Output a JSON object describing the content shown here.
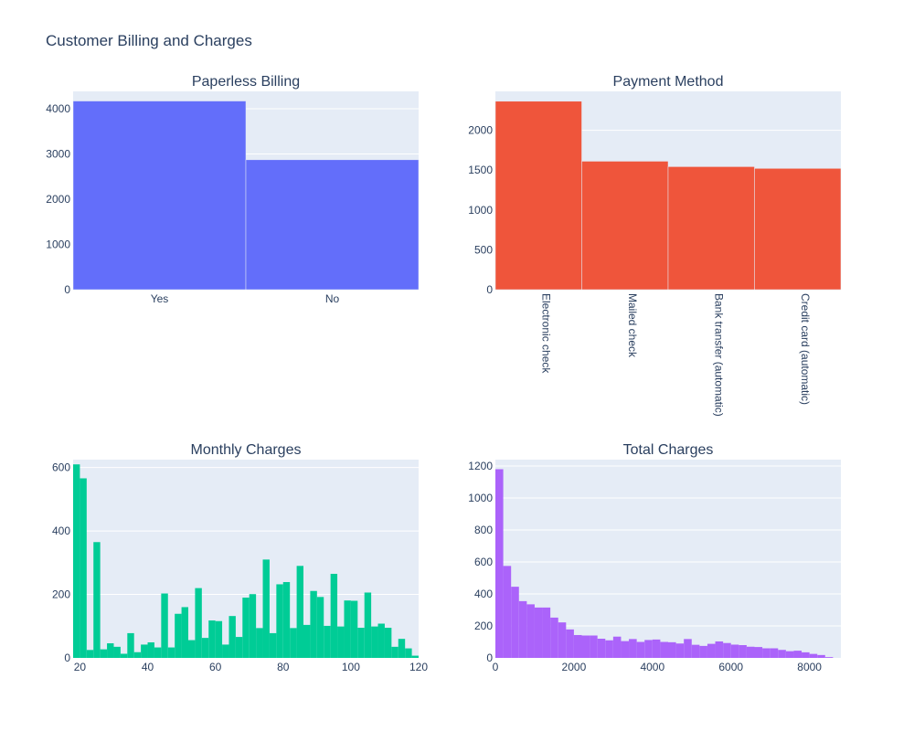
{
  "title": "Customer Billing and Charges",
  "colors": {
    "plot_bg": "#e5ecf6",
    "grid": "#ffffff",
    "text": "#2a3f5f"
  },
  "chart_data": [
    {
      "type": "bar",
      "title": "Paperless Billing",
      "categories": [
        "Yes",
        "No"
      ],
      "values": [
        4171,
        2872
      ],
      "ylim": [
        0,
        4384
      ],
      "yticks": [
        "0",
        "1000",
        "2000",
        "3000",
        "4000"
      ],
      "ytick_values": [
        0,
        1000,
        2000,
        3000,
        4000
      ],
      "color": "#636efa",
      "grid": true
    },
    {
      "type": "bar",
      "title": "Payment Method",
      "categories": [
        "Electronic check",
        "Mailed check",
        "Bank transfer (automatic)",
        "Credit card (automatic)"
      ],
      "values": [
        2365,
        1612,
        1544,
        1522
      ],
      "ylim": [
        0,
        2489
      ],
      "yticks": [
        "0",
        "500",
        "1000",
        "1500",
        "2000"
      ],
      "ytick_values": [
        0,
        500,
        1000,
        1500,
        2000
      ],
      "color": "#ef553b",
      "grid": true
    },
    {
      "type": "bar",
      "title": "Monthly Charges",
      "bin_start": 18,
      "bin_width": 2,
      "values": [
        610,
        566,
        25,
        365,
        27,
        46,
        35,
        13,
        78,
        18,
        42,
        49,
        33,
        203,
        33,
        139,
        160,
        56,
        220,
        63,
        118,
        116,
        42,
        132,
        66,
        190,
        201,
        94,
        310,
        78,
        232,
        239,
        94,
        290,
        104,
        211,
        192,
        101,
        265,
        99,
        181,
        180,
        95,
        206,
        99,
        108,
        95,
        35,
        60,
        30,
        7
      ],
      "xlim": [
        18,
        120
      ],
      "ylim": [
        0,
        625
      ],
      "xticks": [
        "20",
        "40",
        "60",
        "80",
        "100",
        "120"
      ],
      "xtick_values": [
        20,
        40,
        60,
        80,
        100,
        120
      ],
      "yticks": [
        "0",
        "200",
        "400",
        "600"
      ],
      "ytick_values": [
        0,
        200,
        400,
        600
      ],
      "color": "#00cc96",
      "grid": true
    },
    {
      "type": "bar",
      "title": "Total Charges",
      "bin_start": 0,
      "bin_width": 200,
      "values": [
        1180,
        575,
        445,
        355,
        335,
        315,
        315,
        252,
        222,
        178,
        143,
        140,
        140,
        120,
        110,
        133,
        105,
        118,
        100,
        112,
        115,
        100,
        98,
        90,
        118,
        82,
        75,
        88,
        103,
        93,
        83,
        80,
        70,
        68,
        60,
        60,
        50,
        42,
        45,
        35,
        25,
        18,
        5
      ],
      "xlim": [
        0,
        8800
      ],
      "ylim": [
        0,
        1240
      ],
      "xticks": [
        "0",
        "2000",
        "4000",
        "6000",
        "8000"
      ],
      "xtick_values": [
        0,
        2000,
        4000,
        6000,
        8000
      ],
      "yticks": [
        "0",
        "200",
        "400",
        "600",
        "800",
        "1000",
        "1200"
      ],
      "ytick_values": [
        0,
        200,
        400,
        600,
        800,
        1000,
        1200
      ],
      "color": "#ab63fa",
      "grid": true
    }
  ]
}
